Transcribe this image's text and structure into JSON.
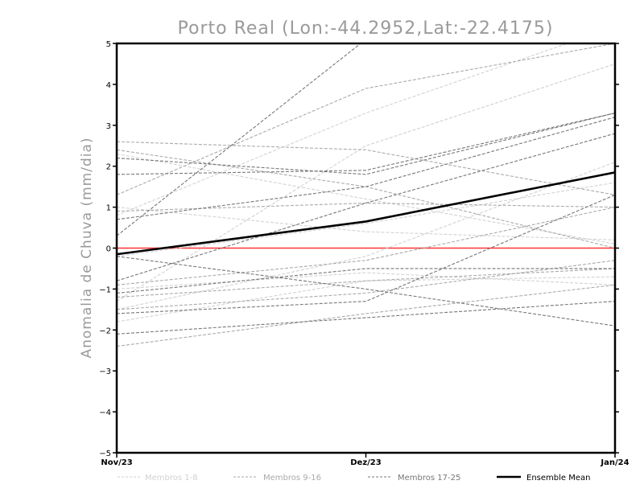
{
  "chart_data": {
    "type": "line",
    "title": "Porto Real (Lon:-44.2952,Lat:-22.4175)",
    "ylabel": "Anomalia de Chuva (mm/dia)",
    "xlabel": "",
    "categories": [
      "Nov/23",
      "Dez/23",
      "Jan/24"
    ],
    "ylim": [
      -5,
      5
    ],
    "yticks": [
      "-5",
      "-4",
      "-3",
      "-2",
      "-1",
      "0",
      "1",
      "2",
      "3",
      "4",
      "5"
    ],
    "zero_line_color": "#ff3333",
    "legend_placement": "bottom",
    "legend": [
      {
        "label": "Membros 1-8",
        "color": "#d2d2d2",
        "style": "dashed"
      },
      {
        "label": "Membros 9-16",
        "color": "#aaaaaa",
        "style": "dashed"
      },
      {
        "label": "Membros 17-25",
        "color": "#777777",
        "style": "dashed"
      },
      {
        "label": "Ensemble Mean",
        "color": "#000000",
        "style": "solid"
      }
    ],
    "series": [
      {
        "group": "Membros 1-8",
        "color": "#d2d2d2",
        "values": [
          2.3,
          1.2,
          0.1
        ]
      },
      {
        "group": "Membros 1-8",
        "color": "#d2d2d2",
        "values": [
          -1.0,
          -0.6,
          -0.9
        ]
      },
      {
        "group": "Membros 1-8",
        "color": "#d2d2d2",
        "values": [
          -1.3,
          2.5,
          4.5
        ]
      },
      {
        "group": "Membros 1-8",
        "color": "#d2d2d2",
        "values": [
          -0.2,
          0.6,
          1.6
        ]
      },
      {
        "group": "Membros 1-8",
        "color": "#d2d2d2",
        "values": [
          -1.8,
          -0.8,
          -0.7
        ]
      },
      {
        "group": "Membros 1-8",
        "color": "#d2d2d2",
        "values": [
          0.8,
          3.3,
          5.4
        ]
      },
      {
        "group": "Membros 1-8",
        "color": "#d2d2d2",
        "values": [
          -1.5,
          -0.2,
          2.1
        ]
      },
      {
        "group": "Membros 1-8",
        "color": "#d2d2d2",
        "values": [
          1.0,
          0.4,
          0.2
        ]
      },
      {
        "group": "Membros 9-16",
        "color": "#aaaaaa",
        "values": [
          1.3,
          3.9,
          5.0
        ]
      },
      {
        "group": "Membros 9-16",
        "color": "#aaaaaa",
        "values": [
          -0.9,
          -0.3,
          1.0
        ]
      },
      {
        "group": "Membros 9-16",
        "color": "#aaaaaa",
        "values": [
          2.6,
          2.4,
          1.3
        ]
      },
      {
        "group": "Membros 9-16",
        "color": "#aaaaaa",
        "values": [
          -1.2,
          -0.8,
          -0.5
        ]
      },
      {
        "group": "Membros 9-16",
        "color": "#aaaaaa",
        "values": [
          0.9,
          1.1,
          1.0
        ]
      },
      {
        "group": "Membros 9-16",
        "color": "#aaaaaa",
        "values": [
          -1.5,
          -1.1,
          -0.3
        ]
      },
      {
        "group": "Membros 9-16",
        "color": "#aaaaaa",
        "values": [
          2.4,
          1.5,
          0.0
        ]
      },
      {
        "group": "Membros 9-16",
        "color": "#aaaaaa",
        "values": [
          -2.4,
          -1.6,
          -0.9
        ]
      },
      {
        "group": "Membros 17-25",
        "color": "#777777",
        "values": [
          0.3,
          5.1,
          5.1
        ]
      },
      {
        "group": "Membros 17-25",
        "color": "#777777",
        "values": [
          1.8,
          1.9,
          3.3
        ]
      },
      {
        "group": "Membros 17-25",
        "color": "#777777",
        "values": [
          0.7,
          1.5,
          3.2
        ]
      },
      {
        "group": "Membros 17-25",
        "color": "#777777",
        "values": [
          -0.2,
          -1.0,
          -1.9
        ]
      },
      {
        "group": "Membros 17-25",
        "color": "#777777",
        "values": [
          -1.1,
          -0.5,
          -0.5
        ]
      },
      {
        "group": "Membros 17-25",
        "color": "#777777",
        "values": [
          -2.1,
          -1.7,
          -1.3
        ]
      },
      {
        "group": "Membros 17-25",
        "color": "#777777",
        "values": [
          -1.6,
          -1.3,
          1.3
        ]
      },
      {
        "group": "Membros 17-25",
        "color": "#777777",
        "values": [
          -0.8,
          1.1,
          2.8
        ]
      },
      {
        "group": "Membros 17-25",
        "color": "#777777",
        "values": [
          2.2,
          1.8,
          3.3
        ]
      },
      {
        "group": "Ensemble Mean",
        "color": "#000000",
        "values": [
          -0.15,
          0.65,
          1.85
        ]
      }
    ]
  }
}
